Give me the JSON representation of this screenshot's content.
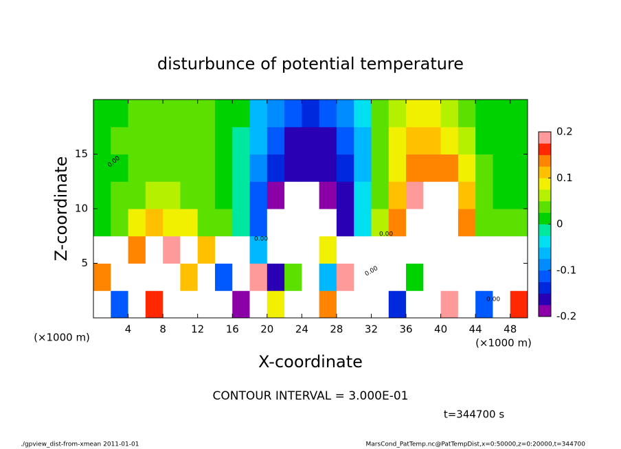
{
  "chart_data": {
    "type": "heatmap",
    "title": "disturbunce of potential temperature",
    "x_label": "X-coordinate",
    "y_label": "Z-coordinate",
    "x_unit": "(×1000 m)",
    "y_unit": "(×1000 m)",
    "xlim": [
      0,
      50
    ],
    "ylim": [
      0,
      20
    ],
    "xticks": [
      4,
      8,
      12,
      16,
      20,
      24,
      28,
      32,
      36,
      40,
      44,
      48
    ],
    "yticks": [
      5,
      10,
      15
    ],
    "x": [
      1,
      3,
      5,
      7,
      9,
      11,
      13,
      15,
      17,
      19,
      21,
      23,
      25,
      27,
      29,
      31,
      33,
      35,
      37,
      39,
      41,
      43,
      45,
      47,
      49
    ],
    "y": [
      1.25,
      3.75,
      6.25,
      8.75,
      11.25,
      13.75,
      16.25,
      18.75
    ],
    "z": [
      [
        0.3,
        -0.12,
        0.3,
        0.17,
        -0.3,
        0.3,
        0.3,
        0.3,
        -0.2,
        0.3,
        0.08,
        -0.3,
        0.3,
        0.15,
        -0.3,
        0.3,
        0.3,
        -0.14,
        0.3,
        0.3,
        0.2,
        0.3,
        -0.1,
        0.3,
        0.16
      ],
      [
        0.15,
        0.3,
        -0.3,
        0.3,
        0.3,
        0.12,
        0.3,
        -0.1,
        0.3,
        0.2,
        -0.15,
        0.05,
        0.3,
        -0.05,
        0.18,
        0.3,
        -0.3,
        0.3,
        0.02,
        0.3,
        0.3,
        0.3,
        -0.3,
        0.3,
        0.3
      ],
      [
        0.3,
        -0.3,
        0.15,
        0.3,
        0.18,
        0.3,
        0.12,
        -0.3,
        0.3,
        -0.05,
        0.3,
        -0.3,
        0.3,
        0.1,
        0.3,
        0.3,
        -0.3,
        0.3,
        0.3,
        -0.3,
        0.3,
        0.3,
        -0.3,
        0.3,
        0.3
      ],
      [
        0.02,
        0.05,
        0.09,
        0.11,
        0.1,
        0.08,
        0.05,
        0.03,
        -0.02,
        -0.12,
        -0.26,
        -0.24,
        -0.27,
        -0.21,
        -0.16,
        -0.03,
        0.06,
        0.14,
        0.22,
        0.28,
        0.26,
        0.15,
        0.05,
        0.03,
        0.03
      ],
      [
        0.01,
        0.03,
        0.05,
        0.06,
        0.06,
        0.05,
        0.03,
        0.02,
        -0.02,
        -0.1,
        -0.19,
        -0.25,
        -0.22,
        -0.18,
        -0.15,
        -0.04,
        0.05,
        0.12,
        0.18,
        0.25,
        0.22,
        0.12,
        0.04,
        0.02,
        0.02
      ],
      [
        0.01,
        0.02,
        0.04,
        0.05,
        0.05,
        0.04,
        0.03,
        0.02,
        -0.02,
        -0.09,
        -0.14,
        -0.17,
        -0.17,
        -0.16,
        -0.13,
        -0.05,
        0.04,
        0.1,
        0.14,
        0.15,
        0.13,
        0.08,
        0.03,
        0.01,
        0.01
      ],
      [
        0.01,
        0.03,
        0.04,
        0.05,
        0.04,
        0.04,
        0.03,
        0.02,
        -0.01,
        -0.07,
        -0.12,
        -0.15,
        -0.16,
        -0.15,
        -0.11,
        -0.05,
        0.03,
        0.08,
        0.11,
        0.12,
        0.1,
        0.06,
        0.02,
        0.01,
        0.01
      ],
      [
        0.01,
        0.02,
        0.03,
        0.04,
        0.03,
        0.04,
        0.03,
        0.02,
        0.01,
        -0.05,
        -0.09,
        -0.12,
        -0.13,
        -0.12,
        -0.08,
        -0.03,
        0.03,
        0.06,
        0.08,
        0.09,
        0.07,
        0.04,
        0.02,
        0.01,
        0.01
      ]
    ],
    "levels": [
      -0.2,
      -0.175,
      -0.15,
      -0.125,
      -0.1,
      -0.075,
      -0.05,
      -0.025,
      0,
      0.025,
      0.05,
      0.075,
      0.1,
      0.125,
      0.15,
      0.175,
      0.2
    ],
    "colors": [
      "#8c00a8",
      "#2a00b4",
      "#0028dc",
      "#0058ff",
      "#008cff",
      "#00b8ff",
      "#00e0f0",
      "#00e8a0",
      "#00d200",
      "#5ce000",
      "#b4f000",
      "#f0f000",
      "#ffc000",
      "#ff8400",
      "#ff2800",
      "#ff9a9a"
    ],
    "out_of_range_color": "#ffffff",
    "colorbar_ticks": [
      -0.2,
      -0.1,
      0,
      0.1,
      0.2
    ],
    "contour_labels": [
      "0.00",
      "0.00",
      "0.00",
      "0.00",
      "0.00"
    ],
    "contour_interval": "CONTOUR INTERVAL = 3.000E-01",
    "time_label": "t=344700 s",
    "footer_left": "./gpview_dist-from-xmean  2011-01-01",
    "footer_right": "MarsCond_PatTemp.nc@PatTempDist,x=0:50000,z=0:20000,t=344700"
  }
}
